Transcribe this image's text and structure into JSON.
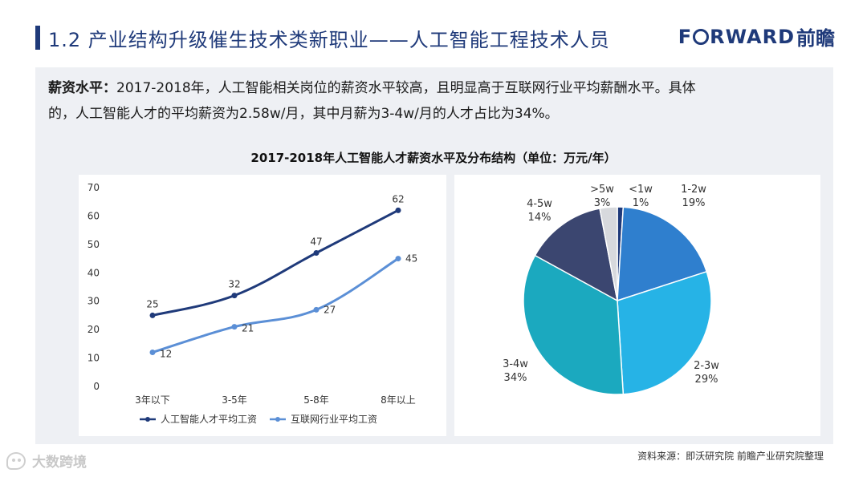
{
  "header": {
    "title": "1.2 产业结构升级催生技术类新职业——人工智能工程技术人员",
    "logo_en_prefix": "F",
    "logo_en_suffix": "RWARD",
    "logo_cn": "前瞻"
  },
  "paragraph": {
    "label": "薪资水平：",
    "line1": "2017-2018年，人工智能相关岗位的薪资水平较高，且明显高于互联网行业平均薪酬水平。具体",
    "line2": "的，人工智能人才的平均薪资为2.58w/月，其中月薪为3-4w/月的人才占比为34%。"
  },
  "chart_title": "2017-2018年人工智能人才薪资水平及分布结构（单位：万元/年）",
  "chart_data": [
    {
      "type": "line",
      "categories": [
        "3年以下",
        "3-5年",
        "5-8年",
        "8年以上"
      ],
      "ylim": [
        0,
        70
      ],
      "yticks": [
        "0",
        "10",
        "20",
        "30",
        "40",
        "50",
        "60",
        "70"
      ],
      "series": [
        {
          "name": "人工智能人才平均工资",
          "values": [
            25,
            32,
            47,
            62
          ],
          "color": "#1f3a7a"
        },
        {
          "name": "互联网行业平均工资",
          "values": [
            12,
            21,
            27,
            45
          ],
          "color": "#5b8fd6"
        }
      ]
    },
    {
      "type": "pie",
      "slices": [
        {
          "label": "<1w",
          "value": 1,
          "pct": "1%",
          "color": "#1f3a7a"
        },
        {
          "label": "1-2w",
          "value": 19,
          "pct": "19%",
          "color": "#2f7fce"
        },
        {
          "label": "2-3w",
          "value": 29,
          "pct": "29%",
          "color": "#26b3e6"
        },
        {
          "label": "3-4w",
          "value": 34,
          "pct": "34%",
          "color": "#1ba9bf"
        },
        {
          "label": "4-5w",
          "value": 14,
          "pct": "14%",
          "color": "#3b4670"
        },
        {
          "label": ">5w",
          "value": 3,
          "pct": "3%",
          "color": "#d7d9dd"
        }
      ]
    }
  ],
  "footer": {
    "source": "资料来源：即沃研究院 前瞻产业研究院整理",
    "watermark": "大数跨境"
  }
}
